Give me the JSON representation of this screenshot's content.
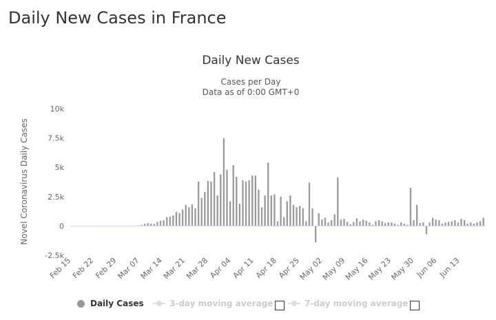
{
  "page": {
    "heading": "Daily New Cases in France"
  },
  "chart_data": {
    "type": "bar",
    "title": "Daily New Cases",
    "subtitle": [
      "Cases per Day",
      "Data as of 0:00 GMT+0"
    ],
    "ylabel": "Novel Coronavirus Daily Cases",
    "ylim": [
      -2500,
      10000
    ],
    "yticks": [
      -2500,
      0,
      2500,
      5000,
      7500,
      10000
    ],
    "ytick_labels": [
      "-2.5k",
      "0",
      "2.5k",
      "5k",
      "7.5k",
      "10k"
    ],
    "xtick_labels": [
      "Feb 15",
      "Feb 22",
      "Feb 29",
      "Mar 07",
      "Mar 14",
      "Mar 21",
      "Mar 28",
      "Apr 04",
      "Apr 11",
      "Apr 18",
      "Apr 25",
      "May 02",
      "May 09",
      "May 16",
      "May 23",
      "May 30",
      "Jun 06",
      "Jun 13"
    ],
    "series": [
      {
        "name": "Daily Cases",
        "color": "#999999",
        "values": [
          0,
          0,
          0,
          0,
          0,
          0,
          0,
          0,
          0,
          0,
          0,
          0,
          0,
          0,
          0,
          0,
          0,
          0,
          0,
          0,
          0,
          57,
          100,
          180,
          250,
          200,
          180,
          350,
          450,
          500,
          750,
          800,
          900,
          1200,
          1100,
          1400,
          1800,
          1600,
          1850,
          1500,
          3800,
          2400,
          2900,
          3850,
          3800,
          4600,
          2600,
          4400,
          7500,
          4800,
          2100,
          5200,
          4200,
          1900,
          3900,
          3800,
          3900,
          4300,
          4300,
          3100,
          1600,
          2600,
          5400,
          2600,
          2700,
          400,
          2500,
          750,
          2100,
          2600,
          1800,
          1600,
          1700,
          1500,
          400,
          3700,
          1500,
          -1400,
          1100,
          550,
          700,
          300,
          500,
          1000,
          4150,
          550,
          600,
          350,
          150,
          350,
          650,
          400,
          550,
          450,
          300,
          100,
          400,
          500,
          400,
          250,
          300,
          300,
          200,
          100,
          300,
          200,
          100,
          3250,
          500,
          1800,
          250,
          300,
          -700,
          300,
          700,
          550,
          500,
          200,
          300,
          350,
          400,
          500,
          300,
          600,
          500,
          200,
          300,
          200,
          300,
          400,
          700
        ]
      }
    ],
    "legend": [
      "Daily Cases",
      "3-day moving average",
      "7-day moving average"
    ],
    "legend_placement": "bottom",
    "grid": false
  }
}
